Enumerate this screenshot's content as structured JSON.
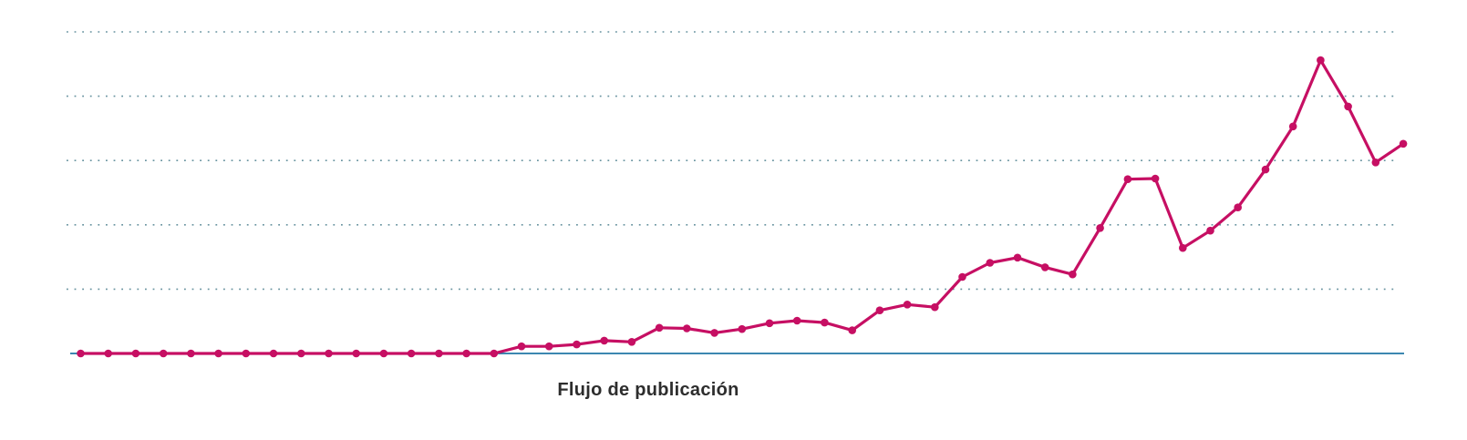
{
  "chart_data": {
    "type": "line",
    "title": "",
    "xlabel": "Flujo de publicación",
    "ylabel": "",
    "legend": null,
    "x_tick_labels_visible": false,
    "y_tick_labels_visible": false,
    "num_points": 49,
    "values": [
      0,
      0,
      0,
      0,
      0,
      0,
      0,
      0,
      0,
      0,
      0,
      0,
      0,
      0,
      0,
      0,
      1.1,
      1.1,
      1.4,
      2.0,
      1.8,
      4.0,
      3.9,
      3.2,
      3.8,
      4.7,
      5.1,
      4.8,
      3.6,
      6.7,
      7.6,
      7.2,
      11.9,
      14.1,
      14.9,
      13.4,
      12.3,
      19.5,
      27.1,
      27.2,
      16.4,
      19.1,
      22.7,
      28.6,
      35.3,
      45.6,
      38.4,
      29.7,
      32.6
    ],
    "ylim": [
      0,
      50
    ],
    "gridlines": {
      "style": "dotted",
      "orientation": "horizontal",
      "y_values": [
        10,
        20,
        30,
        40,
        50
      ]
    },
    "markers": true,
    "colors": {
      "line": "#c60f63",
      "marker": "#c60f63",
      "axis_baseline": "#2176a5",
      "gridline": "#4d808f",
      "label_text": "#2d2d2d",
      "background": "#ffffff"
    }
  }
}
